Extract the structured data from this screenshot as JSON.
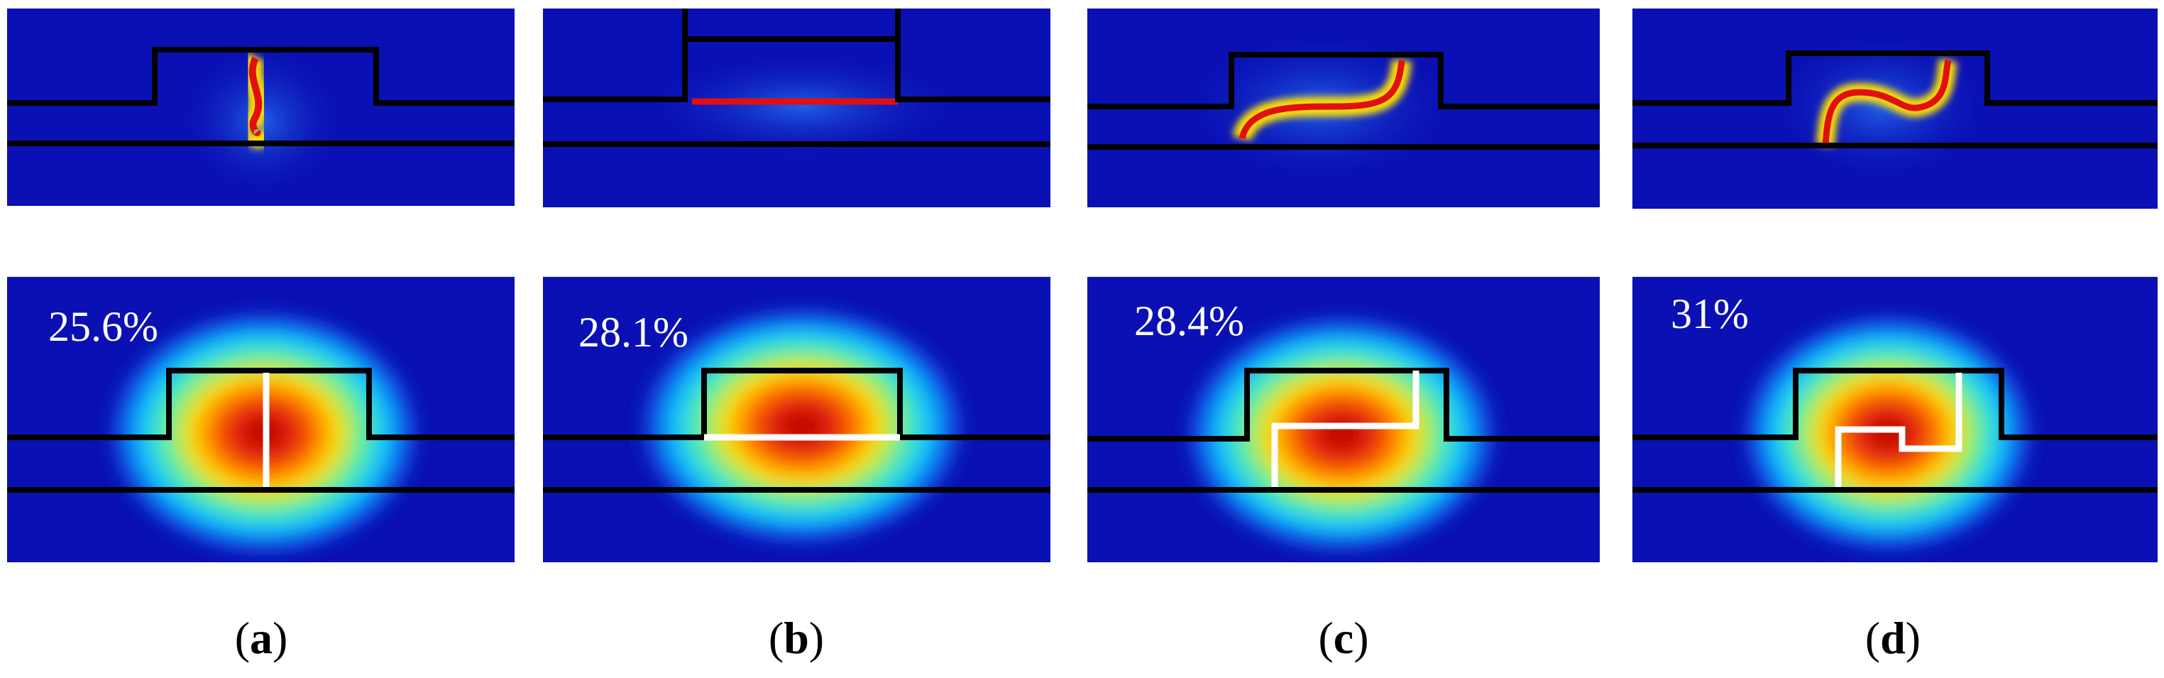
{
  "figure": {
    "panels": [
      {
        "id": "a",
        "label_letter": "a",
        "percentage": "25.6%"
      },
      {
        "id": "b",
        "label_letter": "b",
        "percentage": "28.1%"
      },
      {
        "id": "c",
        "label_letter": "c",
        "percentage": "28.4%"
      },
      {
        "id": "d",
        "label_letter": "d",
        "percentage": "31%"
      }
    ],
    "colors": {
      "background": "#0a10b3",
      "field_low": "#0a10b3",
      "field_high": "#c00000",
      "waveguide_outline": "#000000",
      "slot_line": "#ffffff",
      "percentage_text": "#ffffff",
      "label_text": "#000000"
    }
  }
}
